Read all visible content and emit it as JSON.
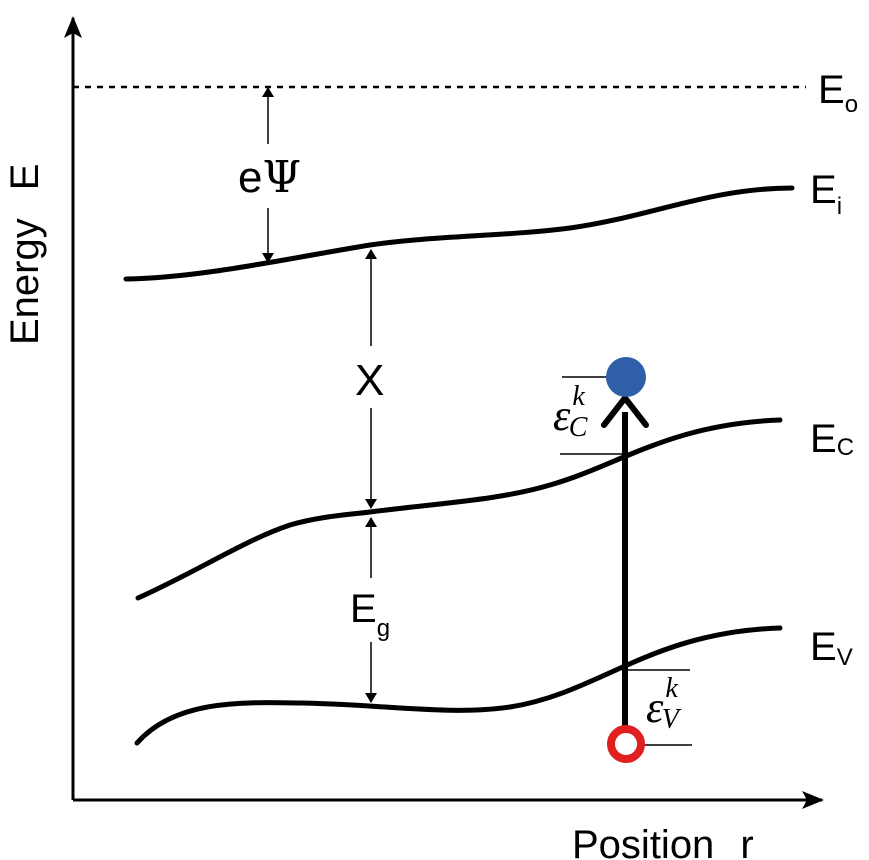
{
  "axes": {
    "y_label": "Energy",
    "y_symbol": "E",
    "x_label": "Position",
    "x_symbol": "r"
  },
  "levels": {
    "vacuum": {
      "main": "E",
      "sub": "o"
    },
    "ionization": {
      "main": "E",
      "sub": "i"
    },
    "conduction": {
      "main": "E",
      "sub": "C"
    },
    "valence": {
      "main": "E",
      "sub": "V"
    }
  },
  "gaps": {
    "work_function": {
      "prefix": "e",
      "symbol": "Ψ"
    },
    "affinity": "X",
    "band_gap": {
      "main": "E",
      "sub": "g"
    }
  },
  "kinetic": {
    "conduction": {
      "main": "ε",
      "sub": "C",
      "sup": "k"
    },
    "valence": {
      "main": "ε",
      "sub": "V",
      "sup": "k"
    }
  },
  "colors": {
    "electron": "#2f5fa8",
    "hole": "#e02020",
    "line": "#000000"
  }
}
